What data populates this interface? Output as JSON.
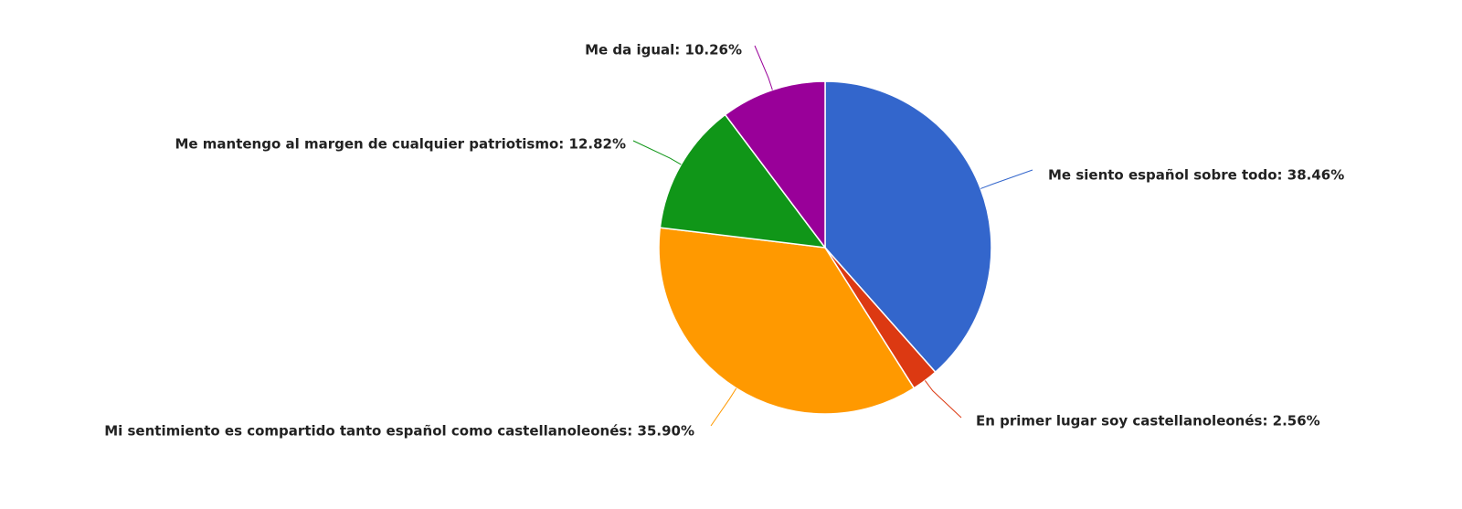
{
  "chart_data": {
    "type": "pie",
    "values": [
      38.46,
      2.56,
      35.9,
      12.82,
      10.26
    ],
    "value_labels": [
      "Me siento español sobre todo: 38.46%",
      "En primer lugar soy castellanoleonés: 2.56%",
      "Mi sentimiento es compartido tanto español como castellanoleonés: 35.90%",
      "Me mantengo al margen de cualquier patriotismo: 12.82%",
      "Me da igual: 10.26%"
    ],
    "colors": [
      "#3366cc",
      "#dc3912",
      "#ff9900",
      "#109618",
      "#990099"
    ]
  }
}
